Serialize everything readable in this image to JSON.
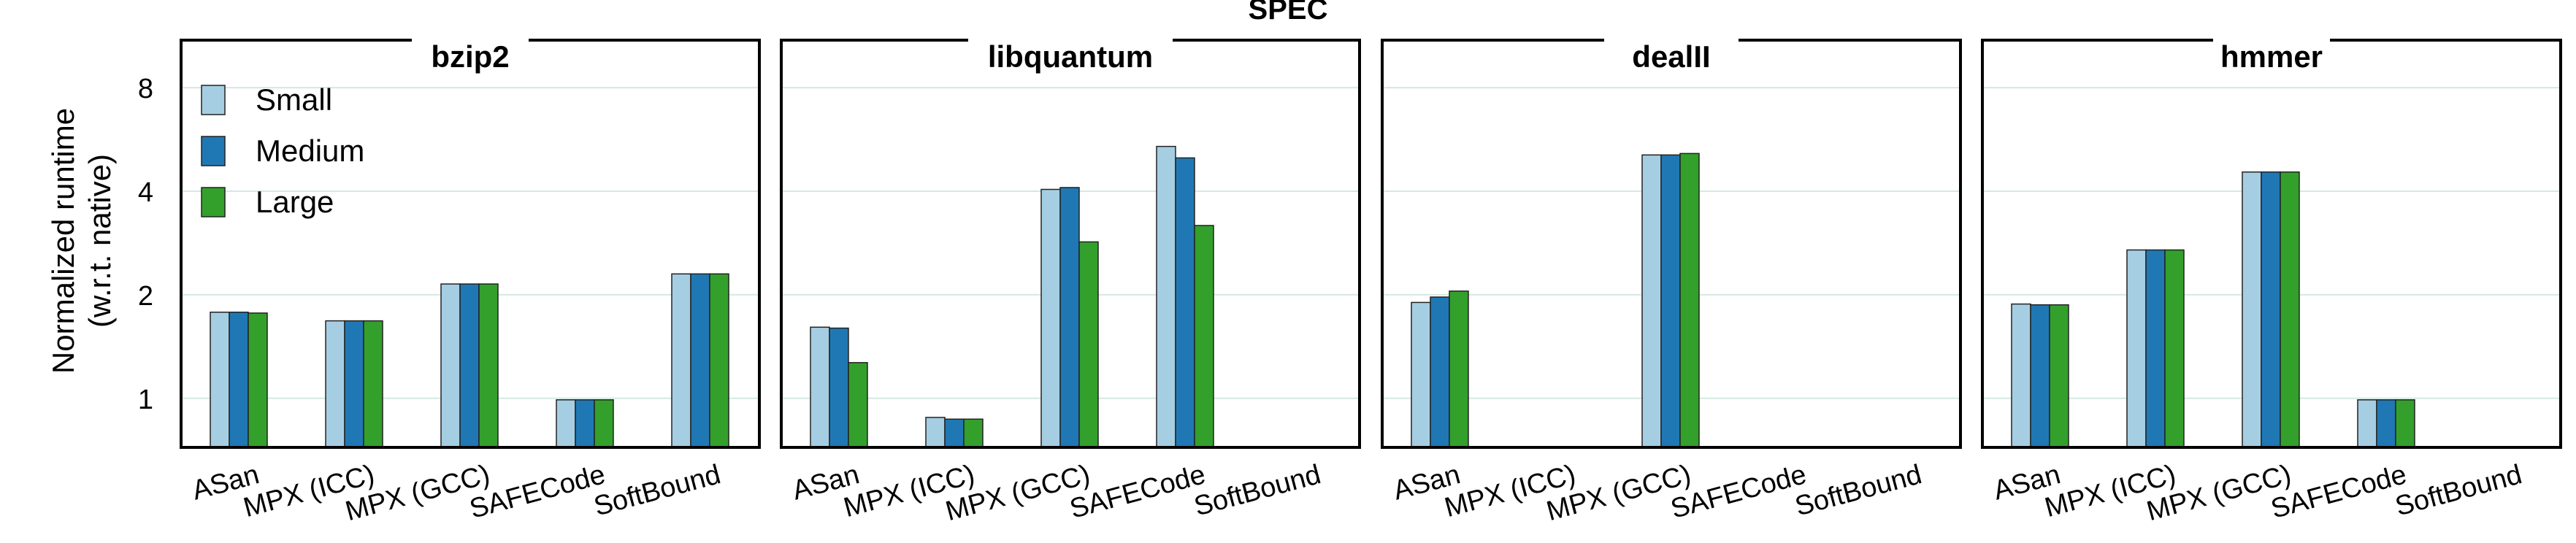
{
  "chart_data": {
    "type": "bar",
    "title": "SPEC",
    "ylabel": "Normalized runtime",
    "ylabel2": "(w.r.t. native)",
    "yscale": "log2",
    "ylim": [
      0.72,
      11.0
    ],
    "yticks": [
      1,
      2,
      4,
      8
    ],
    "grid": true,
    "legend": {
      "placement": "top-left",
      "entries": [
        "Small",
        "Medium",
        "Large"
      ]
    },
    "categories": [
      "ASan",
      "MPX (ICC)",
      "MPX (GCC)",
      "SAFECode",
      "SoftBound"
    ],
    "colors": {
      "Small": "#a6cee3",
      "Medium": "#1f78b4",
      "Large": "#33a02c"
    },
    "panels": [
      {
        "title": "bzip2",
        "series": [
          {
            "name": "Small",
            "values": [
              1.78,
              1.68,
              2.15,
              0.99,
              2.3
            ]
          },
          {
            "name": "Medium",
            "values": [
              1.78,
              1.68,
              2.15,
              0.99,
              2.3
            ]
          },
          {
            "name": "Large",
            "values": [
              1.77,
              1.68,
              2.15,
              0.99,
              2.3
            ]
          }
        ]
      },
      {
        "title": "libquantum",
        "series": [
          {
            "name": "Small",
            "values": [
              1.61,
              0.88,
              4.05,
              5.4,
              null
            ]
          },
          {
            "name": "Medium",
            "values": [
              1.6,
              0.87,
              4.1,
              5.0,
              null
            ]
          },
          {
            "name": "Large",
            "values": [
              1.27,
              0.87,
              2.85,
              3.18,
              null
            ]
          }
        ]
      },
      {
        "title": "dealII",
        "series": [
          {
            "name": "Small",
            "values": [
              1.9,
              null,
              5.1,
              null,
              null
            ]
          },
          {
            "name": "Medium",
            "values": [
              1.97,
              null,
              5.1,
              null,
              null
            ]
          },
          {
            "name": "Large",
            "values": [
              2.05,
              null,
              5.15,
              null,
              null
            ]
          }
        ]
      },
      {
        "title": "hmmer",
        "series": [
          {
            "name": "Small",
            "values": [
              1.88,
              2.7,
              4.55,
              0.99,
              null
            ]
          },
          {
            "name": "Medium",
            "values": [
              1.87,
              2.7,
              4.55,
              0.99,
              null
            ]
          },
          {
            "name": "Large",
            "values": [
              1.87,
              2.7,
              4.55,
              0.99,
              null
            ]
          }
        ]
      }
    ]
  }
}
